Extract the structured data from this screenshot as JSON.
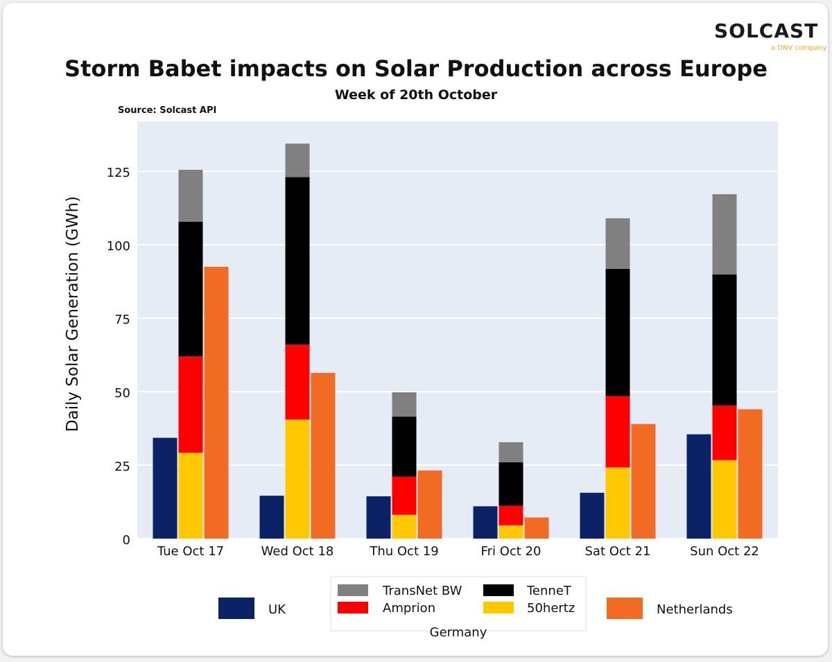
{
  "logo": {
    "brand": "SOLCAST",
    "tagline": "a DNV company"
  },
  "chart_data": {
    "type": "bar",
    "title": "Storm Babet impacts on Solar Production across Europe",
    "subtitle": "Week of 20th October",
    "source": "Source: Solcast API",
    "xlabel": "",
    "ylabel": "Daily Solar Generation (GWh)",
    "ylim": [
      0,
      142
    ],
    "yticks": [
      0,
      25,
      50,
      75,
      100,
      125
    ],
    "grid": true,
    "categories": [
      "Tue Oct 17",
      "Wed Oct 18",
      "Thu Oct 19",
      "Fri Oct 20",
      "Sat Oct 21",
      "Sun Oct 22"
    ],
    "series": [
      {
        "name": "UK",
        "group": "UK",
        "color": "#0b2266",
        "values": [
          34.3,
          14.6,
          14.4,
          11.0,
          15.6,
          35.5
        ]
      },
      {
        "name": "50hertz",
        "group": "Germany",
        "color": "#ffc800",
        "values": [
          29.2,
          40.5,
          8.1,
          4.5,
          24.2,
          26.7
        ]
      },
      {
        "name": "Amprion",
        "group": "Germany",
        "color": "#ff0000",
        "values": [
          32.8,
          25.5,
          13.0,
          6.7,
          24.3,
          18.6
        ]
      },
      {
        "name": "TenneT",
        "group": "Germany",
        "color": "#000000",
        "values": [
          45.8,
          57.0,
          20.4,
          14.8,
          43.3,
          44.6
        ]
      },
      {
        "name": "TransNet BW",
        "group": "Germany",
        "color": "#808080",
        "values": [
          17.7,
          11.4,
          8.3,
          6.8,
          17.2,
          27.3
        ]
      },
      {
        "name": "Netherlands",
        "group": "Netherlands",
        "color": "#f26b22",
        "values": [
          92.5,
          56.4,
          23.2,
          7.2,
          39.0,
          44.0
        ]
      }
    ],
    "legend": {
      "placement": "bottom",
      "items": [
        {
          "label": "UK",
          "color": "#0b2266"
        },
        {
          "label": "TransNet BW",
          "color": "#808080"
        },
        {
          "label": "TenneT",
          "color": "#000000"
        },
        {
          "label": "Amprion",
          "color": "#ff0000"
        },
        {
          "label": "50hertz",
          "color": "#ffc800"
        },
        {
          "label": "Netherlands",
          "color": "#f26b22"
        }
      ],
      "group_title": "Germany"
    },
    "plot_background": "#e5ecf6"
  }
}
